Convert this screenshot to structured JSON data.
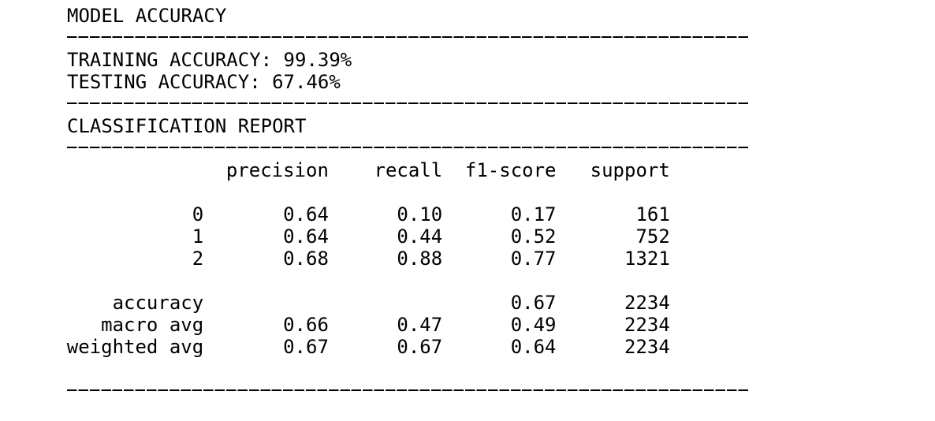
{
  "title": "MODEL ACCURACY",
  "accuracy": [
    {
      "label": "TRAINING ACCURACY:",
      "value": "99.39%"
    },
    {
      "label": "TESTING ACCURACY:",
      "value": "67.46%"
    }
  ],
  "report": {
    "title": "CLASSIFICATION REPORT",
    "header": [
      "precision",
      "recall",
      "f1-score",
      "support"
    ],
    "rows": [
      [
        "0",
        "0.64",
        "0.10",
        "0.17",
        "161"
      ],
      [
        "1",
        "0.64",
        "0.44",
        "0.52",
        "752"
      ],
      [
        "2",
        "0.68",
        "0.88",
        "0.77",
        "1321"
      ],
      [
        "accuracy",
        null,
        null,
        "0.67",
        "2234"
      ],
      [
        "macro avg",
        "0.66",
        "0.47",
        "0.49",
        "2234"
      ],
      [
        "weighted avg",
        "0.67",
        "0.67",
        "0.64",
        "2234"
      ]
    ]
  }
}
